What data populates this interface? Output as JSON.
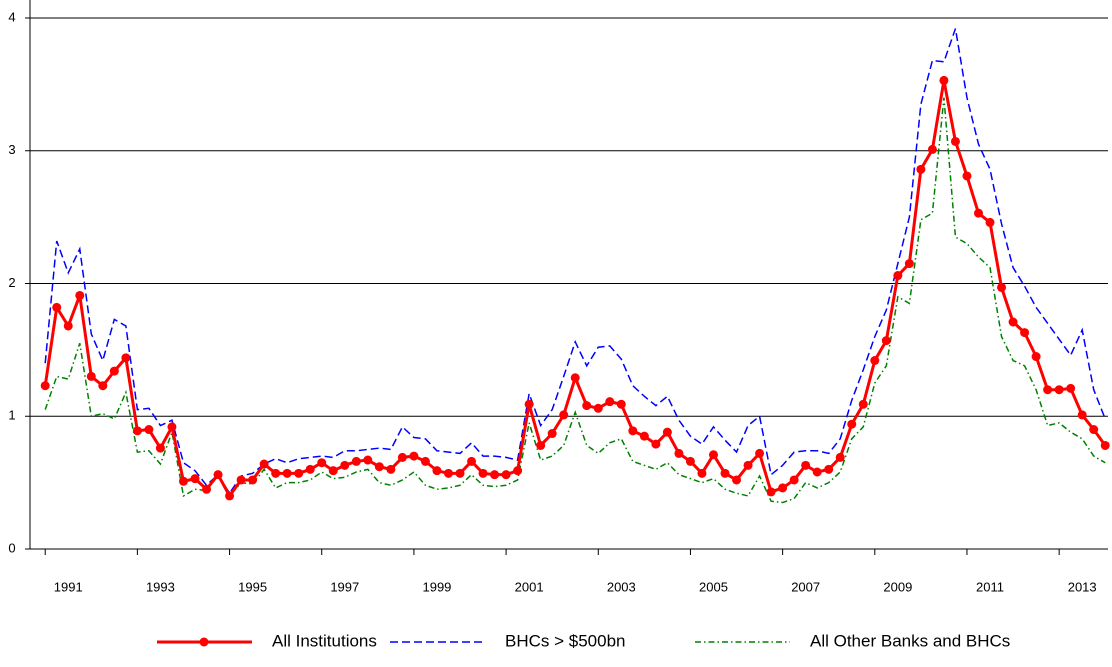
{
  "chart_data": {
    "type": "line",
    "x": [
      1991,
      1991.25,
      1991.5,
      1991.75,
      1992,
      1992.25,
      1992.5,
      1992.75,
      1993,
      1993.25,
      1993.5,
      1993.75,
      1994,
      1994.25,
      1994.5,
      1994.75,
      1995,
      1995.25,
      1995.5,
      1995.75,
      1996,
      1996.25,
      1996.5,
      1996.75,
      1997,
      1997.25,
      1997.5,
      1997.75,
      1998,
      1998.25,
      1998.5,
      1998.75,
      1999,
      1999.25,
      1999.5,
      1999.75,
      2000,
      2000.25,
      2000.5,
      2000.75,
      2001,
      2001.25,
      2001.5,
      2001.75,
      2002,
      2002.25,
      2002.5,
      2002.75,
      2003,
      2003.25,
      2003.5,
      2003.75,
      2004,
      2004.25,
      2004.5,
      2004.75,
      2005,
      2005.25,
      2005.5,
      2005.75,
      2006,
      2006.25,
      2006.5,
      2006.75,
      2007,
      2007.25,
      2007.5,
      2007.75,
      2008,
      2008.25,
      2008.5,
      2008.75,
      2009,
      2009.25,
      2009.5,
      2009.75,
      2010,
      2010.25,
      2010.5,
      2010.75,
      2011,
      2011.25,
      2011.5,
      2011.75,
      2012,
      2012.25,
      2012.5,
      2012.75,
      2013,
      2013.25,
      2013.5,
      2013.75,
      2014
    ],
    "series": [
      {
        "name": "All Institutions",
        "color": "#ff0000",
        "dash": "solid",
        "marker": "circle",
        "values": [
          1.23,
          1.82,
          1.68,
          1.91,
          1.3,
          1.23,
          1.34,
          1.44,
          0.89,
          0.9,
          0.76,
          0.92,
          0.51,
          0.53,
          0.45,
          0.56,
          0.4,
          0.52,
          0.52,
          0.64,
          0.57,
          0.57,
          0.57,
          0.6,
          0.65,
          0.59,
          0.63,
          0.66,
          0.67,
          0.62,
          0.6,
          0.69,
          0.7,
          0.66,
          0.59,
          0.57,
          0.57,
          0.66,
          0.57,
          0.56,
          0.56,
          0.59,
          1.09,
          0.78,
          0.87,
          1.01,
          1.29,
          1.08,
          1.06,
          1.11,
          1.09,
          0.89,
          0.85,
          0.79,
          0.88,
          0.72,
          0.66,
          0.57,
          0.71,
          0.57,
          0.52,
          0.63,
          0.72,
          0.43,
          0.46,
          0.52,
          0.63,
          0.58,
          0.6,
          0.69,
          0.94,
          1.09,
          1.42,
          1.57,
          2.06,
          2.15,
          2.86,
          3.01,
          3.53,
          3.07,
          2.81,
          2.53,
          2.46,
          1.97,
          1.71,
          1.63,
          1.45,
          1.2,
          1.2,
          1.21,
          1.01,
          0.9,
          0.78
        ]
      },
      {
        "name": "BHCs > $500bn",
        "color": "#0000ff",
        "dash": "dashed",
        "marker": "none",
        "values": [
          1.4,
          2.32,
          2.08,
          2.26,
          1.62,
          1.42,
          1.73,
          1.68,
          1.05,
          1.06,
          0.93,
          0.97,
          0.65,
          0.59,
          0.48,
          0.56,
          0.42,
          0.55,
          0.57,
          0.64,
          0.68,
          0.65,
          0.68,
          0.69,
          0.7,
          0.69,
          0.74,
          0.74,
          0.75,
          0.76,
          0.75,
          0.92,
          0.84,
          0.83,
          0.74,
          0.73,
          0.72,
          0.8,
          0.7,
          0.7,
          0.69,
          0.67,
          1.17,
          0.93,
          1.05,
          1.3,
          1.56,
          1.38,
          1.52,
          1.53,
          1.43,
          1.23,
          1.15,
          1.08,
          1.15,
          0.97,
          0.85,
          0.79,
          0.92,
          0.82,
          0.73,
          0.93,
          1.0,
          0.56,
          0.63,
          0.73,
          0.74,
          0.74,
          0.72,
          0.83,
          1.12,
          1.35,
          1.6,
          1.8,
          2.15,
          2.5,
          3.35,
          3.68,
          3.67,
          3.92,
          3.4,
          3.05,
          2.86,
          2.45,
          2.12,
          1.98,
          1.82,
          1.7,
          1.58,
          1.46,
          1.65,
          1.2,
          0.98
        ]
      },
      {
        "name": "All Other Banks and BHCs",
        "color": "#008000",
        "dash": "dashdot",
        "marker": "none",
        "values": [
          1.05,
          1.3,
          1.28,
          1.55,
          1.0,
          1.02,
          0.98,
          1.18,
          0.73,
          0.74,
          0.64,
          0.88,
          0.4,
          0.45,
          0.44,
          0.56,
          0.4,
          0.5,
          0.49,
          0.6,
          0.46,
          0.5,
          0.5,
          0.52,
          0.58,
          0.53,
          0.54,
          0.58,
          0.6,
          0.5,
          0.48,
          0.52,
          0.58,
          0.48,
          0.45,
          0.46,
          0.48,
          0.56,
          0.48,
          0.47,
          0.48,
          0.52,
          0.95,
          0.67,
          0.7,
          0.78,
          1.03,
          0.78,
          0.72,
          0.8,
          0.83,
          0.66,
          0.63,
          0.6,
          0.65,
          0.56,
          0.53,
          0.5,
          0.53,
          0.45,
          0.42,
          0.4,
          0.55,
          0.36,
          0.35,
          0.38,
          0.5,
          0.46,
          0.5,
          0.58,
          0.83,
          0.92,
          1.25,
          1.38,
          1.9,
          1.85,
          2.48,
          2.53,
          3.4,
          2.35,
          2.3,
          2.2,
          2.12,
          1.6,
          1.42,
          1.38,
          1.2,
          0.93,
          0.95,
          0.88,
          0.83,
          0.7,
          0.65
        ]
      }
    ],
    "xlim": [
      1990.67,
      2014.06
    ],
    "xticks": [
      1991,
      1993,
      1995,
      1997,
      1999,
      2001,
      2003,
      2005,
      2007,
      2009,
      2011,
      2013
    ],
    "ylim": [
      0,
      4
    ],
    "yticks": [
      0,
      1,
      2,
      3,
      4
    ],
    "grid": true,
    "legend": "bottom"
  }
}
